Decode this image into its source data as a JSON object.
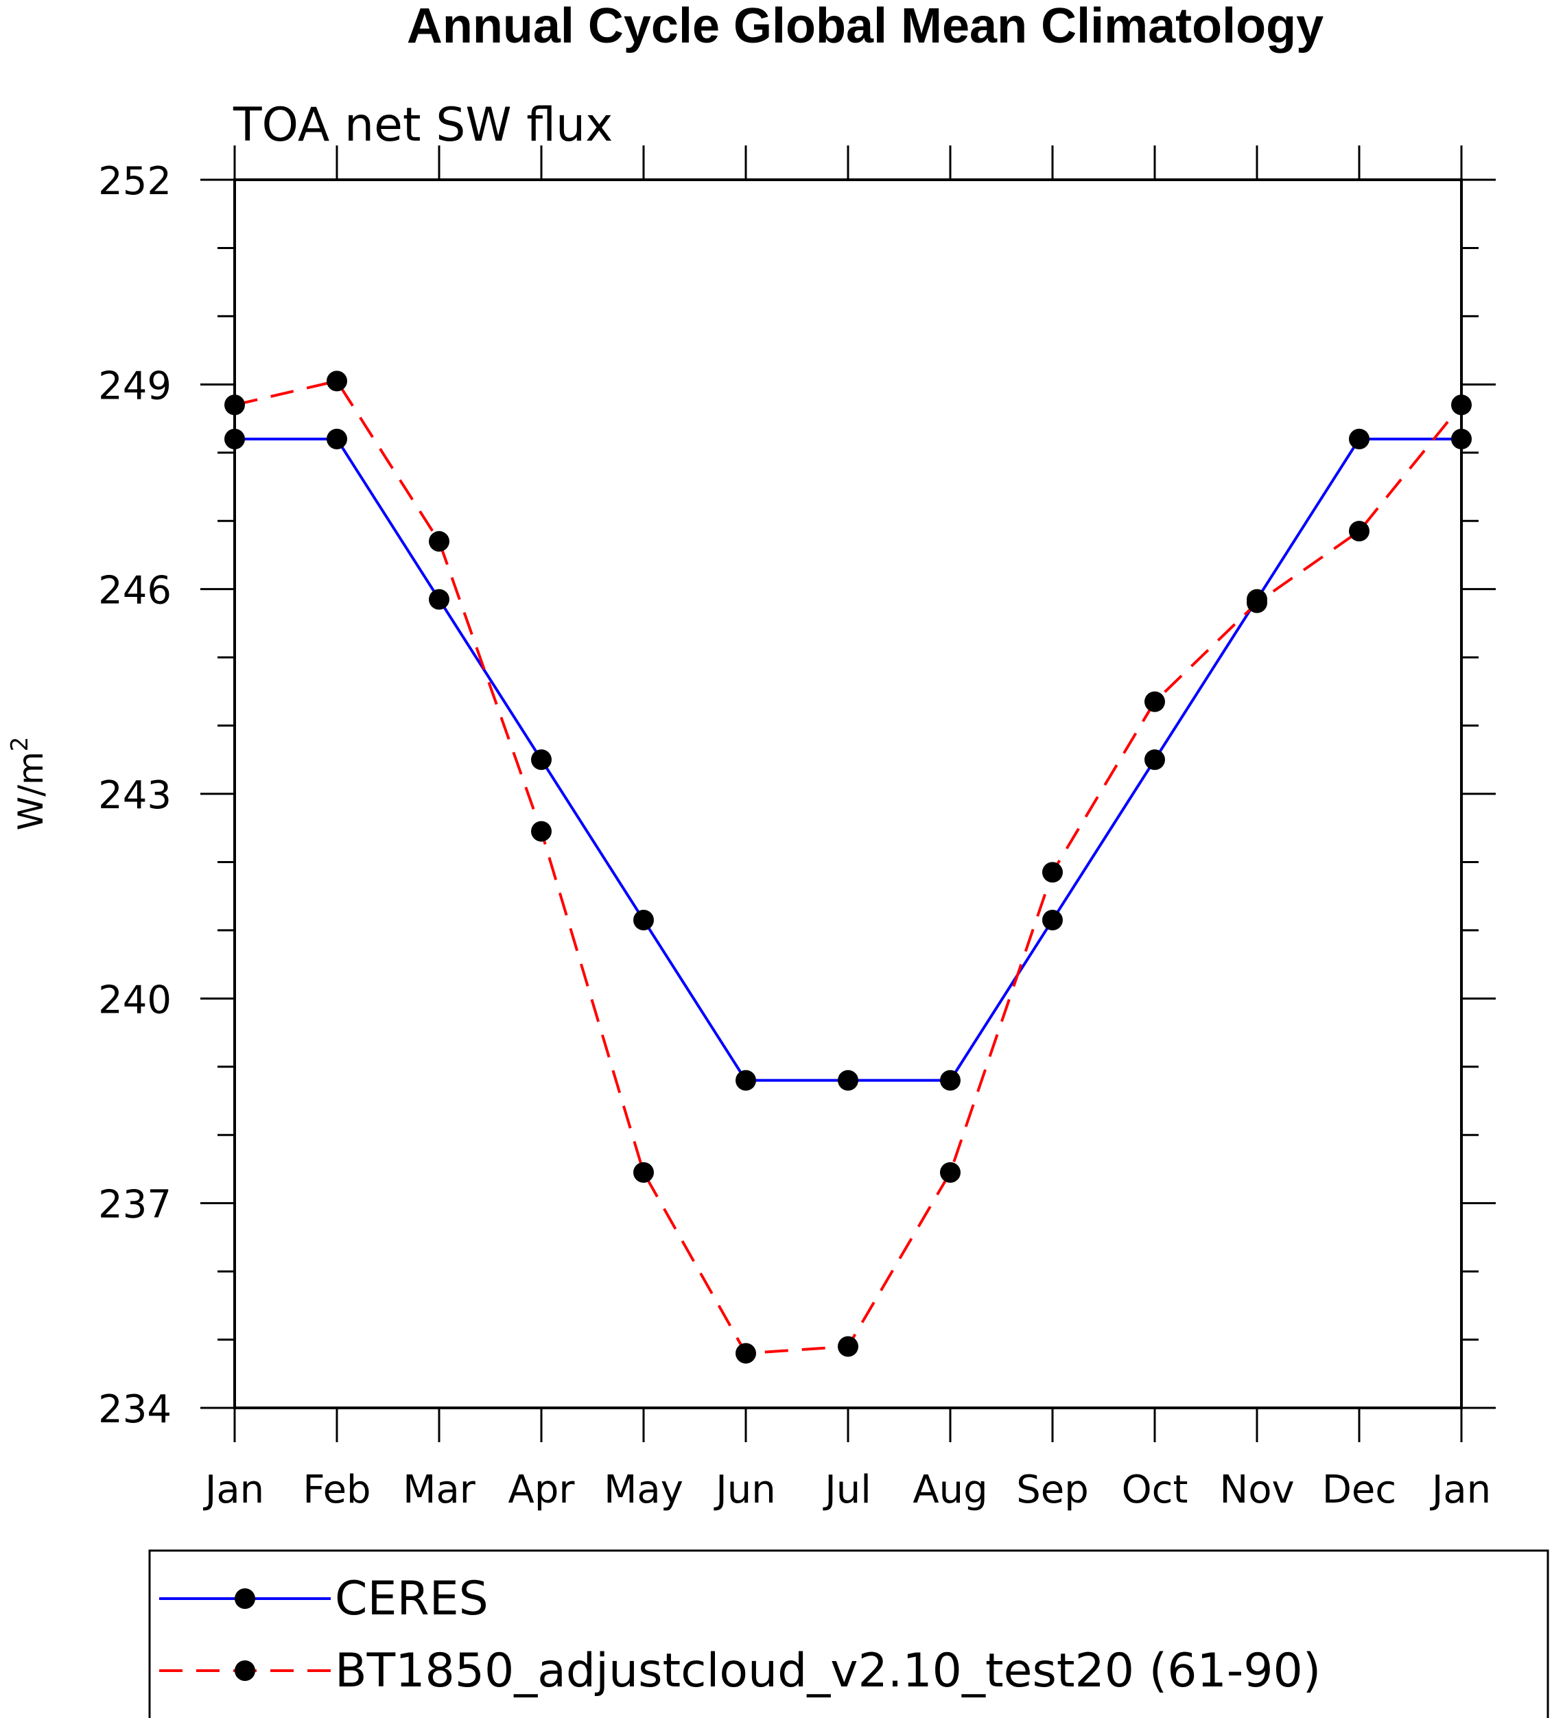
{
  "chart_data": {
    "type": "line",
    "title": "Annual Cycle Global Mean Climatology",
    "subtitle": "TOA net SW flux",
    "xlabel": "",
    "ylabel": "W/m",
    "ylabel_superscript": "2",
    "categories": [
      "Jan",
      "Feb",
      "Mar",
      "Apr",
      "May",
      "Jun",
      "Jul",
      "Aug",
      "Sep",
      "Oct",
      "Nov",
      "Dec",
      "Jan"
    ],
    "ylim": [
      234,
      252
    ],
    "yticks": [
      "234",
      "237",
      "240",
      "243",
      "246",
      "249",
      "252"
    ],
    "series": [
      {
        "name": "CERES",
        "color": "#0000ff",
        "dash": "solid",
        "values": [
          248.2,
          248.2,
          245.85,
          243.5,
          241.15,
          238.8,
          238.8,
          238.8,
          241.15,
          243.5,
          245.85,
          248.2,
          248.2
        ]
      },
      {
        "name": "BT1850_adjustcloud_v2.10_test20 (61-90)",
        "color": "#ff0000",
        "dash": "dashed",
        "values": [
          248.7,
          249.05,
          246.7,
          242.45,
          237.45,
          234.8,
          234.9,
          237.45,
          241.85,
          244.35,
          245.8,
          246.85,
          248.7
        ]
      }
    ],
    "legend_position": "bottom"
  }
}
